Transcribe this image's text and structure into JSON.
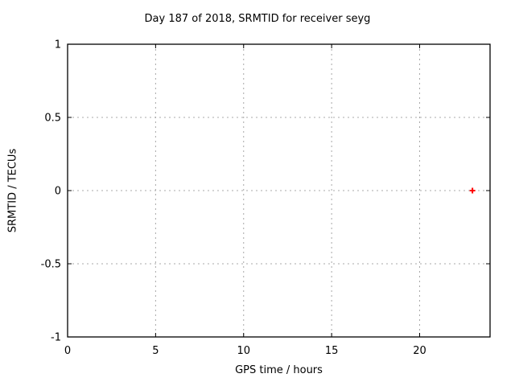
{
  "chart_data": {
    "type": "scatter",
    "title": "Day 187 of 2018, SRMTID for receiver seyg",
    "xlabel": "GPS time / hours",
    "ylabel": "SRMTID / TECUs",
    "xlim": [
      0,
      24
    ],
    "ylim": [
      -1,
      1
    ],
    "xticks": [
      0,
      5,
      10,
      15,
      20
    ],
    "yticks": [
      -1,
      -0.5,
      0,
      0.5,
      1
    ],
    "grid": true,
    "legend": false,
    "series": [
      {
        "marker": "plus",
        "color": "#ff0000",
        "points": [
          {
            "x": 23.0,
            "y": 0.0
          }
        ]
      }
    ],
    "colors": {
      "background": "#ffffff",
      "axis": "#000000",
      "grid": "#a8a8a8",
      "text": "#000000"
    }
  }
}
